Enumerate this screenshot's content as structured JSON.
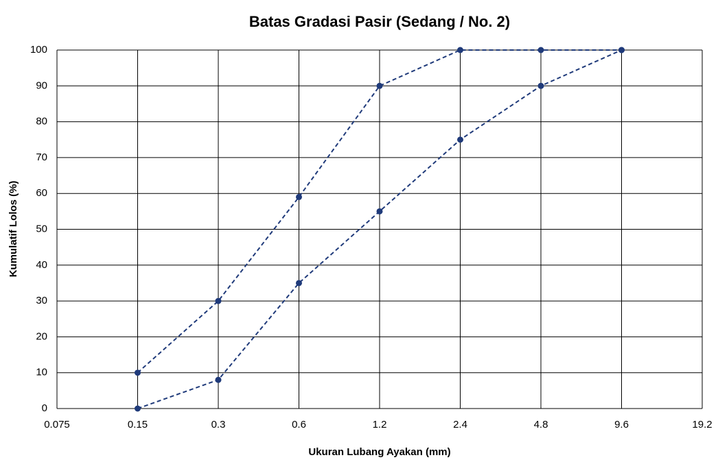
{
  "chart_data": {
    "type": "line",
    "title": "Batas Gradasi Pasir (Sedang / No. 2)",
    "x_label": "Ukuran Lubang Ayakan (mm)",
    "y_label": "Kumulatif Lolos (%)",
    "x": [
      0.15,
      0.3,
      0.6,
      1.2,
      2.4,
      4.8,
      9.6
    ],
    "series": [
      {
        "color": "#1f3a7a",
        "values": [
          10,
          30,
          59,
          90,
          100,
          100,
          100
        ]
      },
      {
        "color": "#1f3a7a",
        "values": [
          0,
          8,
          35,
          55,
          75,
          90,
          100
        ]
      }
    ],
    "xscale": "log",
    "xlim": [
      0.075,
      19.2
    ],
    "xticks": [
      0.075,
      0.15,
      0.3,
      0.6,
      1.2,
      2.4,
      4.8,
      9.6,
      19.2
    ],
    "ylim": [
      0,
      100
    ],
    "yticks": [
      0,
      10,
      20,
      30,
      40,
      50,
      60,
      70,
      80,
      90,
      100
    ],
    "grid": true
  }
}
